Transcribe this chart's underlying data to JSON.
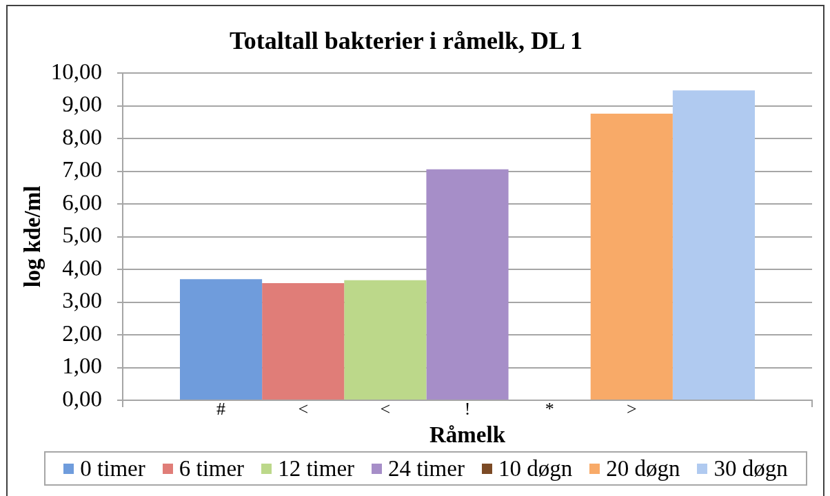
{
  "chart_data": {
    "type": "bar",
    "title": "Totaltall bakterier i råmelk, DL 1",
    "xlabel": "Råmelk",
    "ylabel": "log kde/ml",
    "categories": [
      null
    ],
    "series": [
      {
        "name": "0 timer",
        "color": "#6f9cdc",
        "values": [
          3.7
        ],
        "value_labels": [
          "#"
        ]
      },
      {
        "name": "6 timer",
        "color": "#e07d78",
        "values": [
          3.58
        ],
        "value_labels": [
          "<"
        ]
      },
      {
        "name": "12 timer",
        "color": "#bcd88a",
        "values": [
          3.67
        ],
        "value_labels": [
          "<"
        ]
      },
      {
        "name": "24 timer",
        "color": "#a68ec8",
        "values": [
          7.06
        ],
        "value_labels": [
          "!"
        ]
      },
      {
        "name": "10 døgn",
        "color": "#7b4a25",
        "values": [
          null
        ],
        "value_labels": [
          "*"
        ]
      },
      {
        "name": "20 døgn",
        "color": "#f8aa68",
        "values": [
          8.76
        ],
        "value_labels": [
          ">"
        ]
      },
      {
        "name": "30 døgn",
        "color": "#b0caf0",
        "values": [
          9.47
        ],
        "value_labels": [
          null
        ]
      }
    ],
    "ylim": [
      0,
      10
    ],
    "yticks": [
      {
        "value": 0,
        "label": "0,00"
      },
      {
        "value": 1,
        "label": "1,00"
      },
      {
        "value": 2,
        "label": "2,00"
      },
      {
        "value": 3,
        "label": "3,00"
      },
      {
        "value": 4,
        "label": "4,00"
      },
      {
        "value": 5,
        "label": "5,00"
      },
      {
        "value": 6,
        "label": "6,00"
      },
      {
        "value": 7,
        "label": "7,00"
      },
      {
        "value": 8,
        "label": "8,00"
      },
      {
        "value": 9,
        "label": "9,00"
      },
      {
        "value": 10,
        "label": "10,00"
      }
    ],
    "grid": "y",
    "legend": "bottom"
  }
}
